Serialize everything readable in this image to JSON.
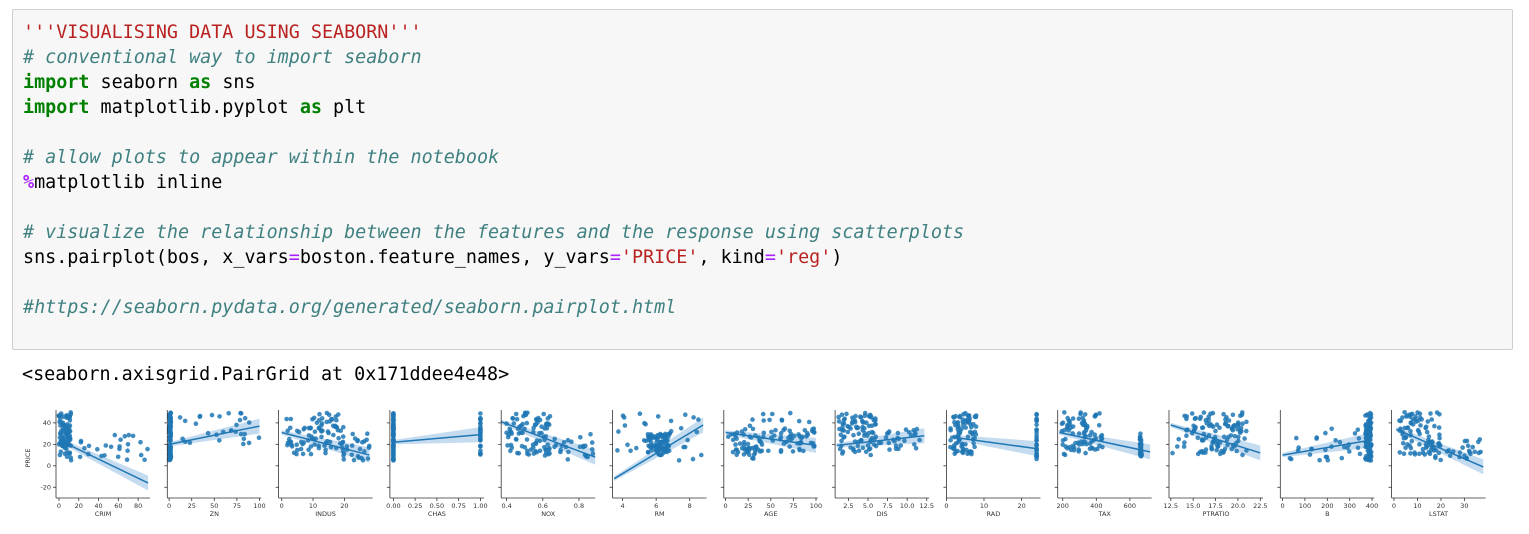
{
  "code_lines": [
    [
      {
        "t": "'''VISUALISING DATA USING SEABORN'''",
        "c": "str"
      }
    ],
    [
      {
        "t": "# conventional way to import seaborn",
        "c": "cm"
      }
    ],
    [
      {
        "t": "import",
        "c": "kw"
      },
      {
        "t": " seaborn ",
        "c": ""
      },
      {
        "t": "as",
        "c": "kw"
      },
      {
        "t": " sns",
        "c": ""
      }
    ],
    [
      {
        "t": "import",
        "c": "kw"
      },
      {
        "t": " matplotlib.pyplot ",
        "c": ""
      },
      {
        "t": "as",
        "c": "kw"
      },
      {
        "t": " plt",
        "c": ""
      }
    ],
    [],
    [
      {
        "t": "# allow plots to appear within the notebook",
        "c": "cm"
      }
    ],
    [
      {
        "t": "%",
        "c": "mg"
      },
      {
        "t": "matplotlib inline",
        "c": ""
      }
    ],
    [],
    [
      {
        "t": "# visualize the relationship between the features and the response using scatterplots",
        "c": "cm"
      }
    ],
    [
      {
        "t": "sns.pairplot(bos, x_vars",
        "c": ""
      },
      {
        "t": "=",
        "c": "op"
      },
      {
        "t": "boston.feature_names, y_vars",
        "c": ""
      },
      {
        "t": "=",
        "c": "op"
      },
      {
        "t": "'PRICE'",
        "c": "str"
      },
      {
        "t": ", kind",
        "c": ""
      },
      {
        "t": "=",
        "c": "op"
      },
      {
        "t": "'reg'",
        "c": "str"
      },
      {
        "t": ")",
        "c": ""
      }
    ],
    [],
    [
      {
        "t": "#https://seaborn.pydata.org/generated/seaborn.pairplot.html",
        "c": "cm"
      }
    ]
  ],
  "output_text": "<seaborn.axisgrid.PairGrid at 0x171ddee4e48>",
  "colors": {
    "point": "#1f77b4",
    "band": "#9ec5e6"
  },
  "chart_data": {
    "type": "scatter",
    "ylabel": "PRICE",
    "y_ticks": [
      40,
      20,
      0,
      -20
    ],
    "ylim": [
      -30,
      52
    ],
    "panels": [
      {
        "xlabel": "CRIM",
        "xlim": [
          -3,
          92
        ],
        "ticks": [
          0,
          20,
          40,
          60,
          80
        ],
        "tick_labels": [
          "0",
          "20",
          "40",
          "60",
          "80"
        ],
        "cluster": {
          "x": [
            0,
            12
          ],
          "y": [
            10,
            50
          ]
        },
        "spread": {
          "x": [
            5,
            90
          ],
          "y": [
            5,
            30
          ]
        },
        "fit": [
          [
            0,
            24
          ],
          [
            90,
            -16
          ]
        ]
      },
      {
        "xlabel": "ZN",
        "xlim": [
          -2,
          102
        ],
        "ticks": [
          0,
          25,
          50,
          75,
          100
        ],
        "tick_labels": [
          "0",
          "25",
          "50",
          "75",
          "100"
        ],
        "cluster": {
          "x": [
            0,
            2
          ],
          "y": [
            5,
            50
          ]
        },
        "spread": {
          "x": [
            12,
            100
          ],
          "y": [
            20,
            50
          ]
        },
        "fit": [
          [
            0,
            20
          ],
          [
            100,
            37
          ]
        ]
      },
      {
        "xlabel": "INDUS",
        "xlim": [
          -1,
          29
        ],
        "ticks": [
          0,
          10,
          20
        ],
        "tick_labels": [
          "0",
          "10",
          "20"
        ],
        "cluster": {
          "x": [
            1,
            20
          ],
          "y": [
            10,
            50
          ]
        },
        "spread": {
          "x": [
            18,
            28
          ],
          "y": [
            5,
            30
          ]
        },
        "fit": [
          [
            0,
            31
          ],
          [
            28,
            10
          ]
        ]
      },
      {
        "xlabel": "CHAS",
        "xlim": [
          -0.04,
          1.04
        ],
        "ticks": [
          0,
          0.25,
          0.5,
          0.75,
          1
        ],
        "tick_labels": [
          "0.00",
          "0.25",
          "0.50",
          "0.75",
          "1.00"
        ],
        "cluster": {
          "x": [
            0,
            0
          ],
          "y": [
            5,
            50
          ]
        },
        "spread": {
          "x": [
            1,
            1
          ],
          "y": [
            10,
            50
          ]
        },
        "fit": [
          [
            0,
            22
          ],
          [
            1,
            29
          ]
        ]
      },
      {
        "xlabel": "NOX",
        "xlim": [
          0.37,
          0.89
        ],
        "ticks": [
          0.4,
          0.6,
          0.8
        ],
        "tick_labels": [
          "0.4",
          "0.6",
          "0.8"
        ],
        "cluster": {
          "x": [
            0.4,
            0.65
          ],
          "y": [
            10,
            50
          ]
        },
        "spread": {
          "x": [
            0.6,
            0.88
          ],
          "y": [
            5,
            30
          ]
        },
        "fit": [
          [
            0.37,
            41
          ],
          [
            0.89,
            8
          ]
        ]
      },
      {
        "xlabel": "RM",
        "xlim": [
          3.4,
          9
        ],
        "ticks": [
          4,
          6,
          8
        ],
        "tick_labels": [
          "4",
          "6",
          "8"
        ],
        "cluster": {
          "x": [
            5.5,
            6.8
          ],
          "y": [
            10,
            30
          ]
        },
        "spread": {
          "x": [
            3.6,
            8.8
          ],
          "y": [
            5,
            50
          ]
        },
        "fit": [
          [
            3.5,
            -12
          ],
          [
            8.8,
            38
          ]
        ]
      },
      {
        "xlabel": "AGE",
        "xlim": [
          -2,
          102
        ],
        "ticks": [
          0,
          25,
          50,
          75,
          100
        ],
        "tick_labels": [
          "0",
          "25",
          "50",
          "75",
          "100"
        ],
        "cluster": {
          "x": [
            5,
            100
          ],
          "y": [
            10,
            35
          ]
        },
        "spread": {
          "x": [
            3,
            100
          ],
          "y": [
            5,
            50
          ]
        },
        "fit": [
          [
            0,
            31
          ],
          [
            100,
            19
          ]
        ]
      },
      {
        "xlabel": "DIS",
        "xlim": [
          0.8,
          12.8
        ],
        "ticks": [
          2.5,
          5,
          7.5,
          10,
          12.5
        ],
        "tick_labels": [
          "2.5",
          "5.0",
          "7.5",
          "10.0",
          "12.5"
        ],
        "cluster": {
          "x": [
            1.2,
            6
          ],
          "y": [
            10,
            50
          ]
        },
        "spread": {
          "x": [
            6,
            12
          ],
          "y": [
            15,
            35
          ]
        },
        "fit": [
          [
            1,
            19
          ],
          [
            12.2,
            28
          ]
        ]
      },
      {
        "xlabel": "RAD",
        "xlim": [
          0,
          25
        ],
        "ticks": [
          0,
          10,
          20
        ],
        "tick_labels": [
          "0",
          "10",
          "20"
        ],
        "cluster": {
          "x": [
            1,
            8
          ],
          "y": [
            10,
            50
          ]
        },
        "spread": {
          "x": [
            24,
            24
          ],
          "y": [
            5,
            50
          ]
        },
        "fit": [
          [
            1,
            27
          ],
          [
            24,
            16
          ]
        ]
      },
      {
        "xlabel": "TAX",
        "xlim": [
          170,
          730
        ],
        "ticks": [
          200,
          400,
          600
        ],
        "tick_labels": [
          "200",
          "400",
          "600"
        ],
        "cluster": {
          "x": [
            190,
            440
          ],
          "y": [
            10,
            50
          ]
        },
        "spread": {
          "x": [
            660,
            670
          ],
          "y": [
            5,
            30
          ]
        },
        "fit": [
          [
            180,
            31
          ],
          [
            720,
            13
          ]
        ]
      },
      {
        "xlabel": "PTRATIO",
        "xlim": [
          12.3,
          22.8
        ],
        "ticks": [
          12.5,
          15,
          17.5,
          20,
          22.5
        ],
        "tick_labels": [
          "12.5",
          "15.0",
          "17.5",
          "20.0",
          "22.5"
        ],
        "cluster": {
          "x": [
            14,
            21
          ],
          "y": [
            10,
            50
          ]
        },
        "spread": {
          "x": [
            12.6,
            22
          ],
          "y": [
            10,
            40
          ]
        },
        "fit": [
          [
            12.5,
            38
          ],
          [
            22.5,
            12
          ]
        ]
      },
      {
        "xlabel": "B",
        "xlim": [
          -10,
          410
        ],
        "ticks": [
          0,
          100,
          200,
          300,
          400
        ],
        "tick_labels": [
          "0",
          "100",
          "200",
          "300",
          "400"
        ],
        "cluster": {
          "x": [
            370,
            397
          ],
          "y": [
            5,
            50
          ]
        },
        "spread": {
          "x": [
            0,
            360
          ],
          "y": [
            5,
            35
          ]
        },
        "fit": [
          [
            0,
            10
          ],
          [
            397,
            24
          ]
        ]
      },
      {
        "xlabel": "LSTAT",
        "xlim": [
          -1,
          39
        ],
        "ticks": [
          0,
          10,
          20,
          30
        ],
        "tick_labels": [
          "0",
          "10",
          "20",
          "30"
        ],
        "cluster": {
          "x": [
            2,
            20
          ],
          "y": [
            10,
            50
          ]
        },
        "spread": {
          "x": [
            15,
            38
          ],
          "y": [
            5,
            25
          ]
        },
        "fit": [
          [
            1,
            34
          ],
          [
            38,
            -1
          ]
        ]
      }
    ]
  }
}
